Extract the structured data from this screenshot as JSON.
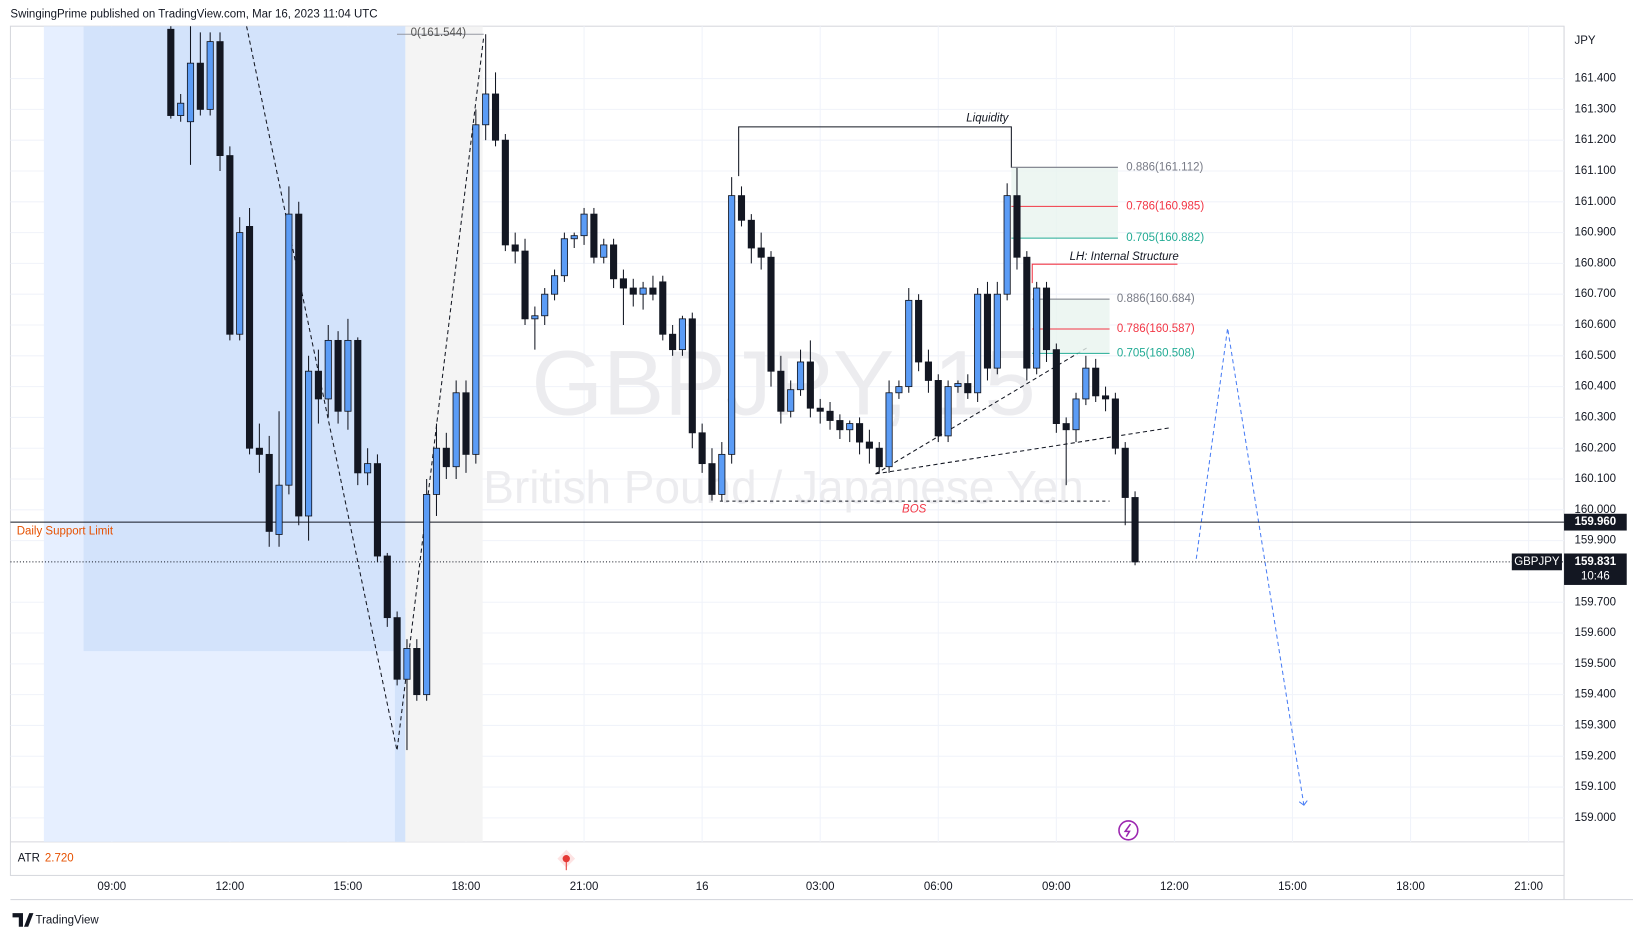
{
  "header": {
    "title": "SwingingPrime published on TradingView.com, Mar 16, 2023 11:04 UTC"
  },
  "chart_data": {
    "type": "candlestick",
    "watermark_title": "GBPJPY, 15",
    "watermark_subtitle": "British Pound / Japanese Yen",
    "currency": "JPY",
    "symbol": "GBPJPY",
    "up_color": "#5b9cf6",
    "down_color": "#131722",
    "x": [
      10.5,
      10.75,
      11,
      11.25,
      11.5,
      11.75,
      12,
      12.25,
      12.5,
      12.75,
      13,
      13.25,
      13.5,
      13.75,
      14,
      14.25,
      14.5,
      14.75,
      15,
      15.25,
      15.5,
      15.75,
      16,
      16.25,
      16.5,
      16.75,
      17,
      17.25,
      17.5,
      17.75,
      18,
      18.25,
      18.5,
      18.75,
      19,
      19.25,
      19.5,
      19.75,
      20,
      20.25,
      20.5,
      20.75,
      21,
      21.25,
      21.5,
      21.75,
      22,
      22.25,
      22.5,
      22.75,
      23,
      23.25,
      23.5,
      23.75,
      24,
      24.25,
      24.5,
      24.75,
      25,
      25.25,
      25.5,
      25.75,
      26,
      26.25,
      26.5,
      26.75,
      27,
      27.25,
      27.5,
      27.75,
      28,
      28.25,
      28.5,
      28.75,
      29,
      29.25,
      29.5,
      29.75,
      30,
      30.25,
      30.5,
      30.75,
      31,
      31.25,
      31.5,
      31.75,
      32,
      32.25,
      32.5,
      32.75,
      33,
      33.25,
      33.5,
      33.75,
      34,
      34.25,
      34.5,
      34.75,
      35
    ],
    "open": [
      161.56,
      161.28,
      161.26,
      161.45,
      161.3,
      161.52,
      161.15,
      160.57,
      160.92,
      160.2,
      160.18,
      159.92,
      160.08,
      160.96,
      159.98,
      160.45,
      160.36,
      160.55,
      160.32,
      160.55,
      160.12,
      160.15,
      159.85,
      159.65,
      159.45,
      159.55,
      159.4,
      160.05,
      160.2,
      160.14,
      160.38,
      160.18,
      161.25,
      161.35,
      161.2,
      160.86,
      160.84,
      160.62,
      160.63,
      160.7,
      160.76,
      160.88,
      160.89,
      160.96,
      160.82,
      160.86,
      160.75,
      160.72,
      160.7,
      160.72,
      160.74,
      160.57,
      160.52,
      160.62,
      160.25,
      160.15,
      160.05,
      160.18,
      161.02,
      160.94,
      160.85,
      160.82,
      160.45,
      160.32,
      160.39,
      160.48,
      160.33,
      160.32,
      160.29,
      160.26,
      160.28,
      160.22,
      160.2,
      160.14,
      160.38,
      160.4,
      160.68,
      160.48,
      160.42,
      160.24,
      160.4,
      160.41,
      160.38,
      160.7,
      160.46,
      160.7,
      161.02,
      160.82,
      160.46,
      160.72,
      160.52,
      160.28,
      160.26,
      160.36,
      160.46,
      160.37,
      160.36,
      160.2,
      160.04
    ],
    "high": [
      161.62,
      161.35,
      161.6,
      161.55,
      161.55,
      161.55,
      161.18,
      160.95,
      160.98,
      160.28,
      160.24,
      160.32,
      161.05,
      161.0,
      160.5,
      160.52,
      160.6,
      160.58,
      160.62,
      160.56,
      160.2,
      160.18,
      159.86,
      159.67,
      159.58,
      159.58,
      160.1,
      160.28,
      160.25,
      160.42,
      160.42,
      161.3,
      161.544,
      161.42,
      161.22,
      160.9,
      160.88,
      160.66,
      160.72,
      160.78,
      160.9,
      160.9,
      160.98,
      160.98,
      160.88,
      160.88,
      160.78,
      160.75,
      160.74,
      160.76,
      160.76,
      160.6,
      160.63,
      160.64,
      160.28,
      160.2,
      160.22,
      161.08,
      161.05,
      160.96,
      160.9,
      160.84,
      160.5,
      160.42,
      160.52,
      160.55,
      160.36,
      160.35,
      160.31,
      160.29,
      160.3,
      160.26,
      160.22,
      160.42,
      160.42,
      160.72,
      160.7,
      160.52,
      160.44,
      160.42,
      160.42,
      160.44,
      160.72,
      160.74,
      160.74,
      161.06,
      161.11,
      160.84,
      160.74,
      160.74,
      160.54,
      160.3,
      160.38,
      160.5,
      160.49,
      160.4,
      160.38,
      160.22,
      160.06
    ],
    "low": [
      161.27,
      161.26,
      161.12,
      161.28,
      161.28,
      161.1,
      160.55,
      160.55,
      160.18,
      160.12,
      159.88,
      159.88,
      160.05,
      159.95,
      159.9,
      160.28,
      160.3,
      160.28,
      160.26,
      160.08,
      160.08,
      159.83,
      159.62,
      159.43,
      159.22,
      159.38,
      159.38,
      159.98,
      160.1,
      160.1,
      160.12,
      160.15,
      161.2,
      161.18,
      160.84,
      160.8,
      160.6,
      160.52,
      160.6,
      160.68,
      160.74,
      160.85,
      160.86,
      160.8,
      160.8,
      160.72,
      160.6,
      160.66,
      160.65,
      160.68,
      160.55,
      160.5,
      160.5,
      160.2,
      160.12,
      160.03,
      160.03,
      160.15,
      160.92,
      160.8,
      160.78,
      160.4,
      160.28,
      160.3,
      160.37,
      160.3,
      160.28,
      160.26,
      160.23,
      160.22,
      160.18,
      160.15,
      160.12,
      160.12,
      160.36,
      160.38,
      160.45,
      160.38,
      160.22,
      160.22,
      160.38,
      160.36,
      160.35,
      160.42,
      160.44,
      160.68,
      160.78,
      160.42,
      160.44,
      160.48,
      160.25,
      160.08,
      160.22,
      160.34,
      160.35,
      160.32,
      160.18,
      159.95,
      159.82
    ],
    "close": [
      161.28,
      161.32,
      161.45,
      161.3,
      161.52,
      161.15,
      160.57,
      160.9,
      160.2,
      160.18,
      159.93,
      160.08,
      160.96,
      159.98,
      160.45,
      160.36,
      160.55,
      160.32,
      160.55,
      160.12,
      160.15,
      159.85,
      159.65,
      159.45,
      159.55,
      159.4,
      160.05,
      160.2,
      160.14,
      160.38,
      160.18,
      161.25,
      161.35,
      161.2,
      160.86,
      160.84,
      160.62,
      160.63,
      160.7,
      160.76,
      160.88,
      160.89,
      160.96,
      160.82,
      160.86,
      160.75,
      160.72,
      160.7,
      160.72,
      160.7,
      160.57,
      160.52,
      160.62,
      160.25,
      160.15,
      160.05,
      160.18,
      161.02,
      160.94,
      160.85,
      160.82,
      160.45,
      160.32,
      160.39,
      160.48,
      160.33,
      160.32,
      160.29,
      160.26,
      160.28,
      160.22,
      160.2,
      160.14,
      160.38,
      160.4,
      160.68,
      160.48,
      160.42,
      160.24,
      160.4,
      160.41,
      160.38,
      160.7,
      160.46,
      160.7,
      161.02,
      160.82,
      160.46,
      160.72,
      160.52,
      160.28,
      160.26,
      160.36,
      160.46,
      160.37,
      160.36,
      160.2,
      160.04,
      159.831
    ],
    "xlim": [
      6.425,
      45.9
    ],
    "xticks": [
      {
        "value": 9,
        "label": "09:00"
      },
      {
        "value": 12,
        "label": "12:00"
      },
      {
        "value": 15,
        "label": "15:00"
      },
      {
        "value": 18,
        "label": "18:00"
      },
      {
        "value": 21,
        "label": "21:00"
      },
      {
        "value": 24,
        "label": "16"
      },
      {
        "value": 27,
        "label": "03:00"
      },
      {
        "value": 30,
        "label": "06:00"
      },
      {
        "value": 33,
        "label": "09:00"
      },
      {
        "value": 36,
        "label": "12:00"
      },
      {
        "value": 39,
        "label": "15:00"
      },
      {
        "value": 42,
        "label": "18:00"
      },
      {
        "value": 45,
        "label": "21:00"
      }
    ],
    "ylim": [
      158.922,
      161.57
    ],
    "yticks": [
      {
        "value": 161.4,
        "label": "161.400"
      },
      {
        "value": 161.3,
        "label": "161.300"
      },
      {
        "value": 161.2,
        "label": "161.200"
      },
      {
        "value": 161.1,
        "label": "161.100"
      },
      {
        "value": 161.0,
        "label": "161.000"
      },
      {
        "value": 160.9,
        "label": "160.900"
      },
      {
        "value": 160.8,
        "label": "160.800"
      },
      {
        "value": 160.7,
        "label": "160.700"
      },
      {
        "value": 160.6,
        "label": "160.600"
      },
      {
        "value": 160.5,
        "label": "160.500"
      },
      {
        "value": 160.4,
        "label": "160.400"
      },
      {
        "value": 160.3,
        "label": "160.300"
      },
      {
        "value": 160.2,
        "label": "160.200"
      },
      {
        "value": 160.1,
        "label": "160.100"
      },
      {
        "value": 160.0,
        "label": "160.000"
      },
      {
        "value": 159.9,
        "label": "159.900"
      },
      {
        "value": 159.7,
        "label": "159.700"
      },
      {
        "value": 159.6,
        "label": "159.600"
      },
      {
        "value": 159.5,
        "label": "159.500"
      },
      {
        "value": 159.4,
        "label": "159.400"
      },
      {
        "value": 159.3,
        "label": "159.300"
      },
      {
        "value": 159.2,
        "label": "159.200"
      },
      {
        "value": 159.1,
        "label": "159.100"
      },
      {
        "value": 159.0,
        "label": "159.000"
      }
    ],
    "grid": true,
    "support": {
      "value": 159.96,
      "label": "159.960",
      "name": "Daily Support Limit"
    },
    "last_price": {
      "value": 159.831,
      "label": "159.831",
      "countdown": "10:46"
    },
    "swing_high": {
      "value": 161.544,
      "label": "0(161.544)"
    },
    "fib_levels": [
      {
        "value": 161.112,
        "label": "0.886(161.112)",
        "color": "#787b86"
      },
      {
        "value": 160.985,
        "label": "0.786(160.985)",
        "color": "#f23645"
      },
      {
        "value": 160.882,
        "label": "0.705(160.882)",
        "color": "#22ab94"
      },
      {
        "value": 160.684,
        "label": "0.886(160.684)",
        "color": "#787b86"
      },
      {
        "value": 160.587,
        "label": "0.786(160.587)",
        "color": "#f23645"
      },
      {
        "value": 160.508,
        "label": "0.705(160.508)",
        "color": "#22ab94"
      }
    ],
    "annotations": [
      "Liquidity",
      "LH: Internal Structure",
      "BOS"
    ],
    "atr": {
      "name": "ATR",
      "value": "2.720"
    }
  },
  "footer": {
    "brand": "TradingView"
  }
}
